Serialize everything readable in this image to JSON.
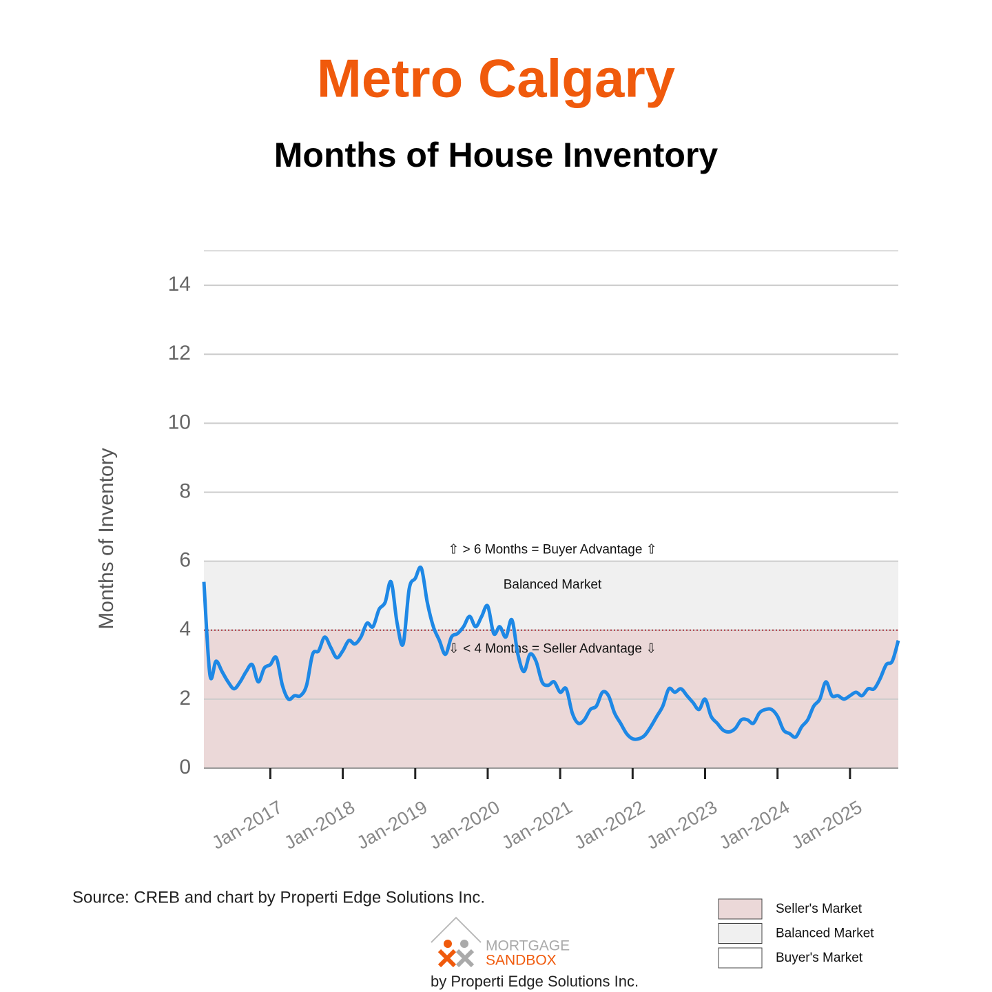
{
  "chart_data": {
    "type": "line",
    "title": "Metro Calgary",
    "subtitle": "Months of House Inventory",
    "y_label": "Months of Inventory",
    "source": "Source: CREB and chart by Properti Edge Solutions Inc.",
    "logo": {
      "line1": "MORTGAGE",
      "line2": "SANDBOX",
      "byline": "by Properti Edge Solutions Inc."
    },
    "color": "#1e88e5",
    "threshold": {
      "value": 4,
      "color": "#b0303a"
    },
    "annotations": {
      "above": "⇧ > 6 Months = Buyer Advantage ⇧",
      "middle": "Balanced Market",
      "below": "⇩ < 4 Months = Seller Advantage ⇩"
    },
    "bands": [
      {
        "name": "Seller's Market",
        "from": 0,
        "to": 4,
        "color": "#ebd8d8"
      },
      {
        "name": "Balanced Market",
        "from": 4,
        "to": 6,
        "color": "#f0f0f0"
      },
      {
        "name": "Buyer's Market",
        "from": 6,
        "to": 15,
        "color": "#ffffff"
      }
    ],
    "ylim": [
      0,
      15
    ],
    "yticks": [
      0,
      2,
      4,
      6,
      8,
      10,
      12,
      14
    ],
    "grid": true,
    "categories": [
      null,
      null,
      null,
      null,
      null,
      null,
      null,
      null,
      null,
      null,
      null,
      "Jan-2017",
      null,
      null,
      null,
      null,
      null,
      null,
      null,
      null,
      null,
      null,
      null,
      "Jan-2018",
      null,
      null,
      null,
      null,
      null,
      null,
      null,
      null,
      null,
      null,
      null,
      "Jan-2019",
      null,
      null,
      null,
      null,
      null,
      null,
      null,
      null,
      null,
      null,
      null,
      "Jan-2020",
      null,
      null,
      null,
      null,
      null,
      null,
      null,
      null,
      null,
      null,
      null,
      "Jan-2021",
      null,
      null,
      null,
      null,
      null,
      null,
      null,
      null,
      null,
      null,
      null,
      "Jan-2022",
      null,
      null,
      null,
      null,
      null,
      null,
      null,
      null,
      null,
      null,
      null,
      "Jan-2023",
      null,
      null,
      null,
      null,
      null,
      null,
      null,
      null,
      null,
      null,
      null,
      "Jan-2024",
      null,
      null,
      null,
      null,
      null,
      null,
      null,
      null,
      null,
      null,
      null,
      "Jan-2025",
      null,
      null,
      null,
      null,
      null,
      null,
      null,
      null
    ],
    "values": [
      5.4,
      2.7,
      3.1,
      2.8,
      2.5,
      2.3,
      2.5,
      2.8,
      3.0,
      2.5,
      2.9,
      3.0,
      3.2,
      2.4,
      2.0,
      2.1,
      2.1,
      2.4,
      3.3,
      3.4,
      3.8,
      3.5,
      3.2,
      3.4,
      3.7,
      3.6,
      3.8,
      4.2,
      4.1,
      4.6,
      4.8,
      5.4,
      4.2,
      3.6,
      5.2,
      5.5,
      5.8,
      4.8,
      4.1,
      3.7,
      3.3,
      3.8,
      3.9,
      4.1,
      4.4,
      4.1,
      4.4,
      4.7,
      3.9,
      4.1,
      3.8,
      4.3,
      3.3,
      2.8,
      3.3,
      3.1,
      2.5,
      2.4,
      2.5,
      2.2,
      2.3,
      1.6,
      1.3,
      1.4,
      1.7,
      1.8,
      2.2,
      2.1,
      1.6,
      1.3,
      1.0,
      0.85,
      0.85,
      0.95,
      1.2,
      1.5,
      1.8,
      2.3,
      2.2,
      2.3,
      2.1,
      1.9,
      1.7,
      2.0,
      1.5,
      1.3,
      1.1,
      1.05,
      1.15,
      1.4,
      1.4,
      1.3,
      1.6,
      1.7,
      1.7,
      1.5,
      1.1,
      1.0,
      0.9,
      1.2,
      1.4,
      1.8,
      2.0,
      2.5,
      2.1,
      2.1,
      2.0,
      2.1,
      2.2,
      2.1,
      2.3,
      2.3,
      2.6,
      3.0,
      3.1,
      3.7
    ]
  }
}
